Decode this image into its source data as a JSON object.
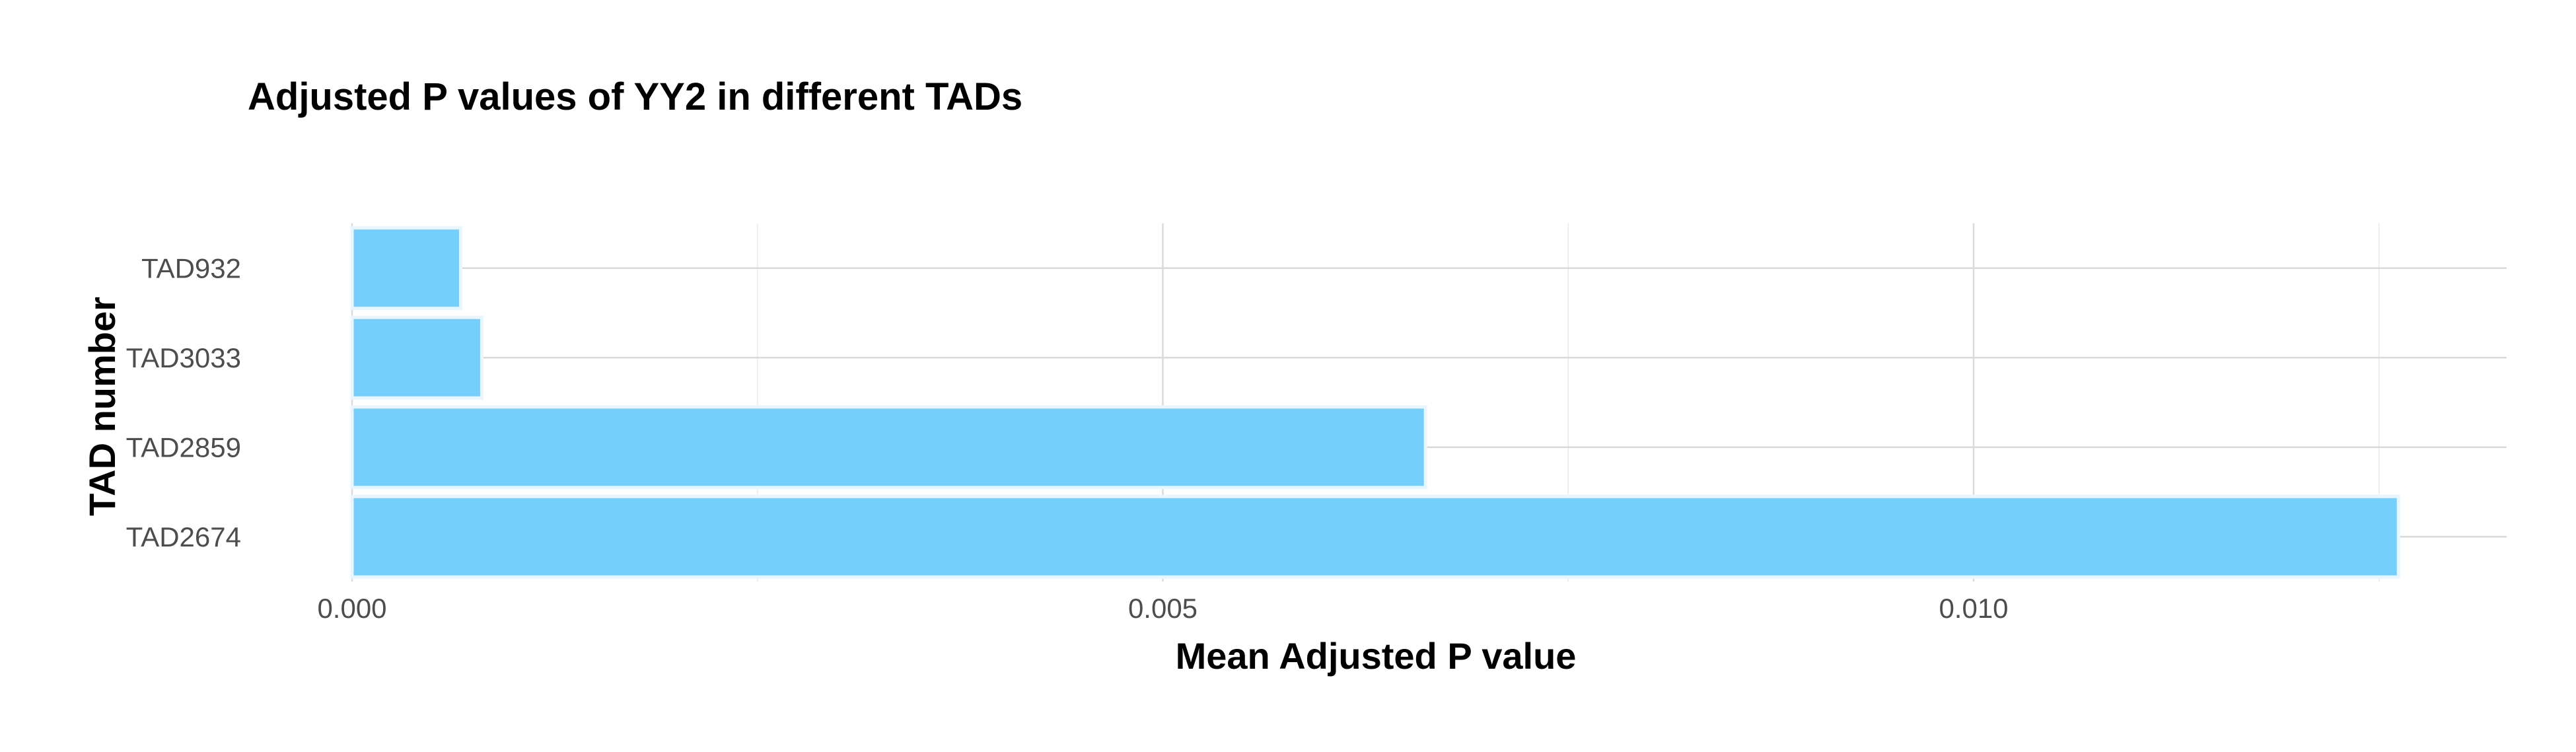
{
  "chart_data": {
    "type": "bar",
    "orientation": "horizontal",
    "title": "Adjusted P values of YY2 in different TADs",
    "xlabel": "Mean Adjusted P value",
    "ylabel": "TAD number",
    "categories": [
      "TAD932",
      "TAD3033",
      "TAD2859",
      "TAD2674"
    ],
    "values": [
      0.00067,
      0.0008,
      0.00662,
      0.01262
    ],
    "xlim": [
      0,
      0.01325
    ],
    "x_ticks": [
      0.0,
      0.005,
      0.01
    ],
    "x_tick_labels": [
      "0.000",
      "0.005",
      "0.010"
    ],
    "grid": true,
    "legend": "none",
    "bar_color": "#74CFFC",
    "bar_outline_color": "#E8F6FF"
  }
}
